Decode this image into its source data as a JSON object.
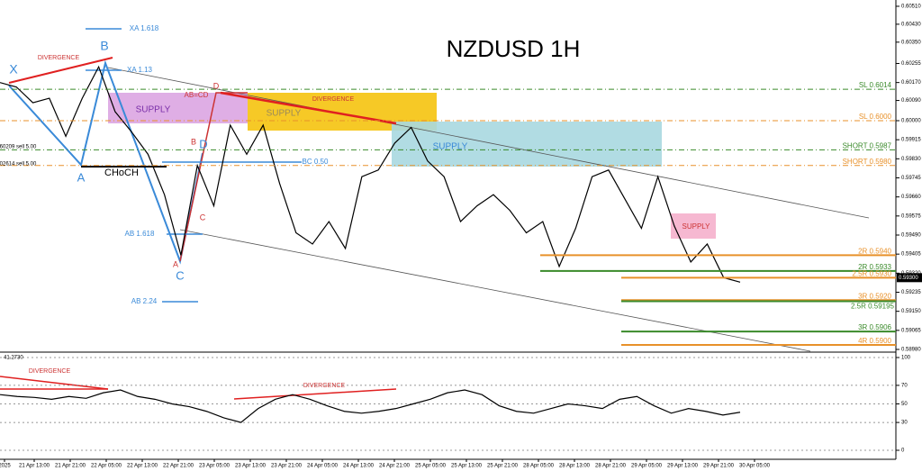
{
  "title": "NZDUSD 1H",
  "chart_data": [
    {
      "type": "line",
      "color": "#000000",
      "values": [
        0.6017,
        0.6015,
        0.6008,
        0.601,
        0.5993,
        0.601,
        0.6024,
        0.6004,
        0.5995,
        0.5985,
        0.5967,
        0.594,
        0.598,
        0.5962,
        0.5998,
        0.5985,
        0.5998,
        0.5972,
        0.595,
        0.5945,
        0.5955,
        0.5943,
        0.5975,
        0.5978,
        0.599,
        0.5997,
        0.5982,
        0.5975,
        0.5955,
        0.5962,
        0.5967,
        0.596,
        0.595,
        0.5955,
        0.5935,
        0.5952,
        0.5975,
        0.5978,
        0.5965,
        0.5952,
        0.5975,
        0.5953,
        0.5937,
        0.5945,
        0.593,
        0.5928
      ],
      "ylim": [
        0.58972,
        0.60538
      ],
      "yticks": [
        {
          "value": 0.6051,
          "label": "0.60510"
        },
        {
          "value": 0.6043,
          "label": "0.60430"
        },
        {
          "value": 0.6035,
          "label": "0.60350"
        },
        {
          "value": 0.60255,
          "label": "0.60255"
        },
        {
          "value": 0.6017,
          "label": "0.60170"
        },
        {
          "value": 0.6009,
          "label": "0.60090"
        },
        {
          "value": 0.6,
          "label": "0.60000"
        },
        {
          "value": 0.59915,
          "label": "0.59915"
        },
        {
          "value": 0.5983,
          "label": "0.59830"
        },
        {
          "value": 0.59745,
          "label": "0.59745"
        },
        {
          "value": 0.5966,
          "label": "0.59660"
        },
        {
          "value": 0.59575,
          "label": "0.59575"
        },
        {
          "value": 0.5949,
          "label": "0.59490"
        },
        {
          "value": 0.59405,
          "label": "0.59405"
        },
        {
          "value": 0.5932,
          "label": "0.59320"
        },
        {
          "value": 0.59235,
          "label": "0.59235"
        },
        {
          "value": 0.5915,
          "label": "0.59150"
        },
        {
          "value": 0.59065,
          "label": "0.59065"
        },
        {
          "value": 0.5898,
          "label": "0.58980"
        }
      ],
      "levels": [
        {
          "value": 0.6014,
          "label": "SL 0.6014",
          "color": "#3a8a2a",
          "style": "dashed"
        },
        {
          "value": 0.6,
          "label": "SL 0.6000",
          "color": "#e8912a",
          "style": "dashed"
        },
        {
          "value": 0.5987,
          "label": "SHORT 0.5987",
          "color": "#3a8a2a",
          "style": "dashed"
        },
        {
          "value": 0.598,
          "label": "SHORT 0.5980",
          "color": "#e8912a",
          "style": "dashed"
        },
        {
          "value": 0.594,
          "label": "2R 0.5940",
          "color": "#e8912a",
          "style": "solid"
        },
        {
          "value": 0.5933,
          "label": "2R 0.5933",
          "color": "#3a8a2a",
          "style": "solid"
        },
        {
          "value": 0.593,
          "label": "2.5R 0.5930",
          "color": "#e8912a",
          "style": "solid"
        },
        {
          "value": 0.592,
          "label": "3R 0.5920",
          "color": "#e8912a",
          "style": "solid"
        },
        {
          "value": 0.59195,
          "label": "2.5R 0.59195",
          "color": "#3a8a2a",
          "style": "solid"
        },
        {
          "value": 0.5906,
          "label": "3R 0.5906",
          "color": "#3a8a2a",
          "style": "solid"
        },
        {
          "value": 0.59,
          "label": "4R 0.5900",
          "color": "#e8912a",
          "style": "solid"
        }
      ],
      "current_price": {
        "value": 0.593,
        "label": "0.59300"
      },
      "annotations": [
        "X",
        "B",
        "A",
        "C",
        "D",
        "CHoCH",
        "XA 1.618",
        "XA 1.13",
        "AB=CD",
        "D",
        "B",
        "C",
        "A",
        "DIVERGENCE",
        "DIVERGENCE",
        "SUPPLY",
        "SUPPLY",
        "SUPPLY",
        "SUPPLY",
        "BC 0.50",
        "AB 1.618",
        "AB 2.24",
        "60209 sell 5.00",
        "02614 sell 5.00"
      ],
      "x_labels": [
        "2025",
        "21 Apr 13:00",
        "21 Apr 21:00",
        "22 Apr 05:00",
        "22 Apr 13:00",
        "22 Apr 21:00",
        "23 Apr 05:00",
        "23 Apr 13:00",
        "23 Apr 21:00",
        "24 Apr 05:00",
        "24 Apr 13:00",
        "24 Apr 21:00",
        "25 Apr 05:00",
        "25 Apr 13:00",
        "25 Apr 21:00",
        "28 Apr 05:00",
        "28 Apr 13:00",
        "28 Apr 21:00",
        "29 Apr 05:00",
        "29 Apr 13:00",
        "29 Apr 21:00",
        "30 Apr 05:00"
      ]
    },
    {
      "type": "line",
      "color": "#000000",
      "values": [
        60,
        58,
        57,
        55,
        58,
        56,
        62,
        65,
        58,
        55,
        50,
        47,
        42,
        35,
        30,
        45,
        55,
        60,
        55,
        48,
        42,
        40,
        42,
        45,
        50,
        55,
        62,
        65,
        60,
        48,
        42,
        40,
        45,
        50,
        48,
        45,
        55,
        58,
        48,
        40,
        45,
        42,
        38,
        41
      ],
      "ylim": [
        0,
        100
      ],
      "yticks": [
        0,
        30,
        50,
        70,
        100
      ],
      "indicator_label": "41.2730",
      "annotations": [
        "DIVERGENCE",
        "DIVERGENCE"
      ]
    }
  ]
}
